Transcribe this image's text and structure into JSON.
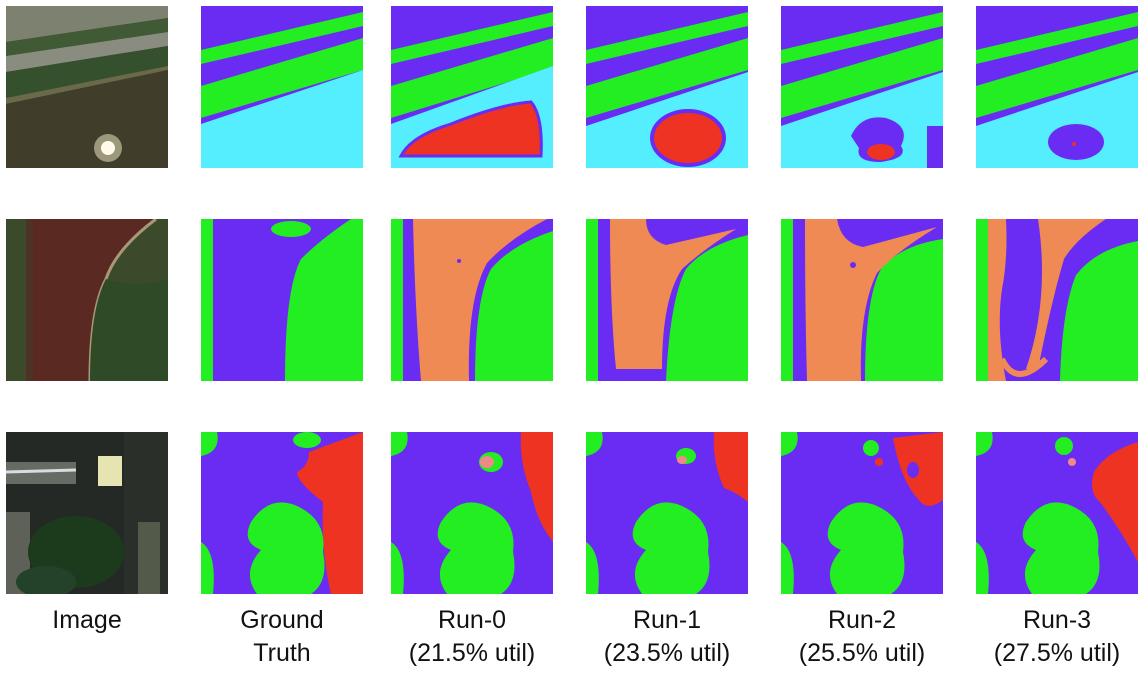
{
  "columns": [
    {
      "id": "image",
      "line1": "Image",
      "line2": ""
    },
    {
      "id": "gt",
      "line1": "Ground",
      "line2": "Truth"
    },
    {
      "id": "run0",
      "line1": "Run-0",
      "line2": "(21.5% util)"
    },
    {
      "id": "run1",
      "line1": "Run-1",
      "line2": "(23.5% util)"
    },
    {
      "id": "run2",
      "line1": "Run-2",
      "line2": "(25.5% util)"
    },
    {
      "id": "run3",
      "line1": "Run-3",
      "line2": "(27.5% util)"
    }
  ],
  "rows": [
    {
      "id": "row-1",
      "content": "aerial-scene-road-field"
    },
    {
      "id": "row-2",
      "content": "aerial-scene-crop-field"
    },
    {
      "id": "row-3",
      "content": "aerial-scene-trees-building"
    }
  ],
  "class_colors": {
    "purple": "#6a2cf2",
    "green": "#22ee22",
    "cyan": "#55eeff",
    "red": "#ee3322",
    "orange": "#f08a55",
    "pink": "#f08888"
  }
}
